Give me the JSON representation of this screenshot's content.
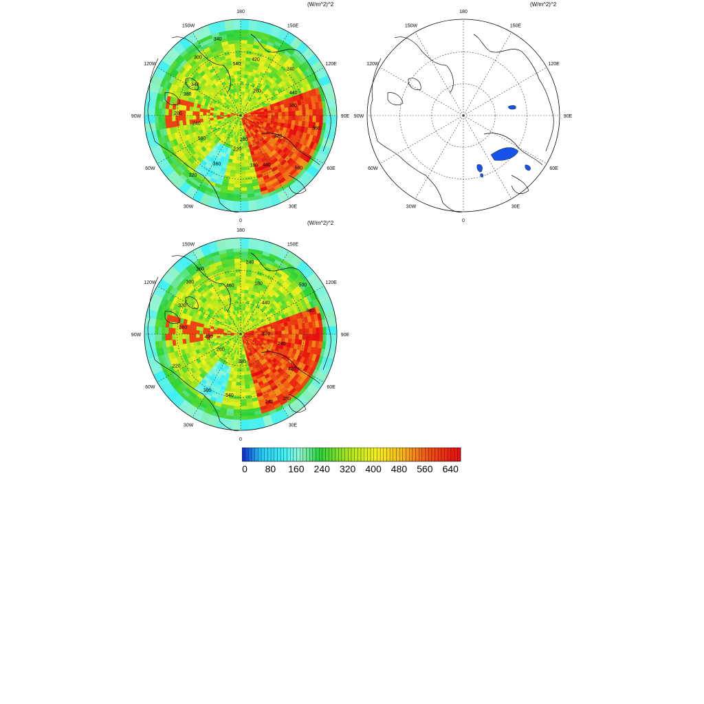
{
  "panels": [
    {
      "name": "panel-top-left",
      "units": "(W/m^2)^2",
      "type": "filled"
    },
    {
      "name": "panel-top-right",
      "units": "(W/m^2)^2",
      "type": "difference"
    },
    {
      "name": "panel-bottom-left",
      "units": "(W/m^2)^2",
      "type": "filled"
    }
  ],
  "lon_labels": {
    "0": "0",
    "30E": "30E",
    "60E": "60E",
    "90E": "90E",
    "120E": "120E",
    "150E": "150E",
    "180": "180",
    "150W": "150W",
    "120W": "120W",
    "90W": "90W",
    "60W": "60W",
    "30W": "30W"
  },
  "contour_labels_top_left": [
    "280",
    "260",
    "240",
    "320",
    "340",
    "360",
    "440",
    "380",
    "460",
    "420",
    "500",
    "360",
    "300",
    "220",
    "240",
    "280",
    "560",
    "540",
    "320",
    "380",
    "340",
    "180"
  ],
  "contour_labels_bottom_left": [
    "280",
    "240",
    "260",
    "320",
    "300",
    "380",
    "440",
    "400",
    "420",
    "460",
    "360",
    "340",
    "320",
    "240",
    "180",
    "220",
    "240",
    "260",
    "540",
    "500",
    "280"
  ],
  "colorbar": {
    "ticks": [
      "0",
      "80",
      "160",
      "240",
      "320",
      "400",
      "480",
      "560",
      "640"
    ],
    "min": 0,
    "max": 680,
    "step": 10
  },
  "colors": {
    "low": "#0b2bd6",
    "cyan": "#33e6f5",
    "green": "#2fd64a",
    "yellow": "#f0f020",
    "orange": "#f59a18",
    "red": "#ee1414",
    "blue_patch": "#1652e8"
  }
}
